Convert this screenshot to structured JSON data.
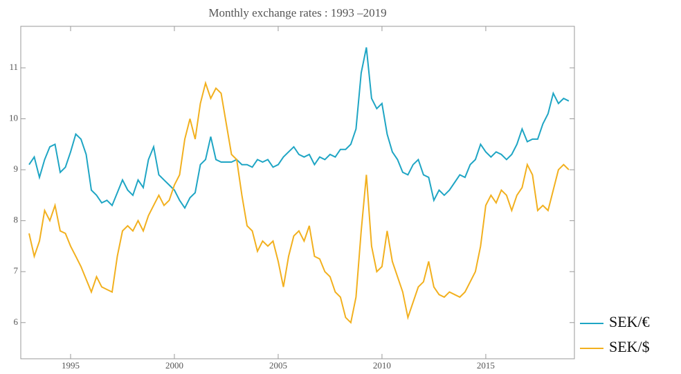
{
  "chart_data": {
    "type": "line",
    "title": "Monthly exchange rates : 1993 –2019",
    "x": [
      1993,
      1993.25,
      1993.5,
      1993.75,
      1994,
      1994.25,
      1994.5,
      1994.75,
      1995,
      1995.25,
      1995.5,
      1995.75,
      1996,
      1996.25,
      1996.5,
      1996.75,
      1997,
      1997.25,
      1997.5,
      1997.75,
      1998,
      1998.25,
      1998.5,
      1998.75,
      1999,
      1999.25,
      1999.5,
      1999.75,
      2000,
      2000.25,
      2000.5,
      2000.75,
      2001,
      2001.25,
      2001.5,
      2001.75,
      2002,
      2002.25,
      2002.5,
      2002.75,
      2003,
      2003.25,
      2003.5,
      2003.75,
      2004,
      2004.25,
      2004.5,
      2004.75,
      2005,
      2005.25,
      2005.5,
      2005.75,
      2006,
      2006.25,
      2006.5,
      2006.75,
      2007,
      2007.25,
      2007.5,
      2007.75,
      2008,
      2008.25,
      2008.5,
      2008.75,
      2009,
      2009.25,
      2009.5,
      2009.75,
      2010,
      2010.25,
      2010.5,
      2010.75,
      2011,
      2011.25,
      2011.5,
      2011.75,
      2012,
      2012.25,
      2012.5,
      2012.75,
      2013,
      2013.25,
      2013.5,
      2013.75,
      2014,
      2014.25,
      2014.5,
      2014.75,
      2015,
      2015.25,
      2015.5,
      2015.75,
      2016,
      2016.25,
      2016.5,
      2016.75,
      2017,
      2017.25,
      2017.5,
      2017.75,
      2018,
      2018.25,
      2018.5,
      2018.75,
      2019
    ],
    "series": [
      {
        "name": "SEK/€",
        "color": "#1ea5c4",
        "values": [
          9.1,
          9.25,
          8.85,
          9.2,
          9.45,
          9.5,
          8.95,
          9.05,
          9.35,
          9.7,
          9.6,
          9.3,
          8.6,
          8.5,
          8.35,
          8.4,
          8.3,
          8.55,
          8.8,
          8.6,
          8.5,
          8.8,
          8.65,
          9.2,
          9.45,
          8.9,
          8.8,
          8.7,
          8.6,
          8.4,
          8.25,
          8.45,
          8.55,
          9.1,
          9.2,
          9.65,
          9.2,
          9.15,
          9.15,
          9.15,
          9.2,
          9.1,
          9.1,
          9.05,
          9.2,
          9.15,
          9.2,
          9.05,
          9.1,
          9.25,
          9.35,
          9.45,
          9.3,
          9.25,
          9.3,
          9.1,
          9.25,
          9.2,
          9.3,
          9.25,
          9.4,
          9.4,
          9.5,
          9.8,
          10.9,
          11.4,
          10.4,
          10.2,
          10.3,
          9.7,
          9.35,
          9.2,
          8.95,
          8.9,
          9.1,
          9.2,
          8.9,
          8.85,
          8.4,
          8.6,
          8.5,
          8.6,
          8.75,
          8.9,
          8.85,
          9.1,
          9.2,
          9.5,
          9.35,
          9.25,
          9.35,
          9.3,
          9.2,
          9.3,
          9.5,
          9.8,
          9.55,
          9.6,
          9.6,
          9.9,
          10.1,
          10.5,
          10.3,
          10.4,
          10.35
        ]
      },
      {
        "name": "SEK/$",
        "color": "#f2b01e",
        "values": [
          7.75,
          7.3,
          7.6,
          8.2,
          8.0,
          8.3,
          7.8,
          7.75,
          7.5,
          7.3,
          7.1,
          6.85,
          6.6,
          6.9,
          6.7,
          6.65,
          6.6,
          7.3,
          7.8,
          7.9,
          7.8,
          8.0,
          7.8,
          8.1,
          8.3,
          8.5,
          8.3,
          8.4,
          8.7,
          8.9,
          9.6,
          10.0,
          9.6,
          10.3,
          10.7,
          10.4,
          10.6,
          10.5,
          9.9,
          9.3,
          9.2,
          8.5,
          7.9,
          7.8,
          7.4,
          7.6,
          7.5,
          7.6,
          7.2,
          6.7,
          7.3,
          7.7,
          7.8,
          7.6,
          7.9,
          7.3,
          7.25,
          7.0,
          6.9,
          6.6,
          6.5,
          6.1,
          6.0,
          6.5,
          7.8,
          8.9,
          7.5,
          7.0,
          7.1,
          7.8,
          7.2,
          6.9,
          6.6,
          6.1,
          6.4,
          6.7,
          6.8,
          7.2,
          6.7,
          6.55,
          6.5,
          6.6,
          6.55,
          6.5,
          6.6,
          6.8,
          7.0,
          7.5,
          8.3,
          8.5,
          8.35,
          8.6,
          8.5,
          8.2,
          8.5,
          8.65,
          9.1,
          8.9,
          8.2,
          8.3,
          8.2,
          8.6,
          9.0,
          9.1,
          9.0
        ]
      }
    ],
    "xlim": [
      1992.6,
      2019.27
    ],
    "xticks": [
      1995,
      2000,
      2005,
      2010,
      2015
    ],
    "ylim": [
      5.29,
      11.815
    ],
    "yticks": [
      6,
      7,
      8,
      9,
      10,
      11
    ],
    "legend": "right"
  }
}
